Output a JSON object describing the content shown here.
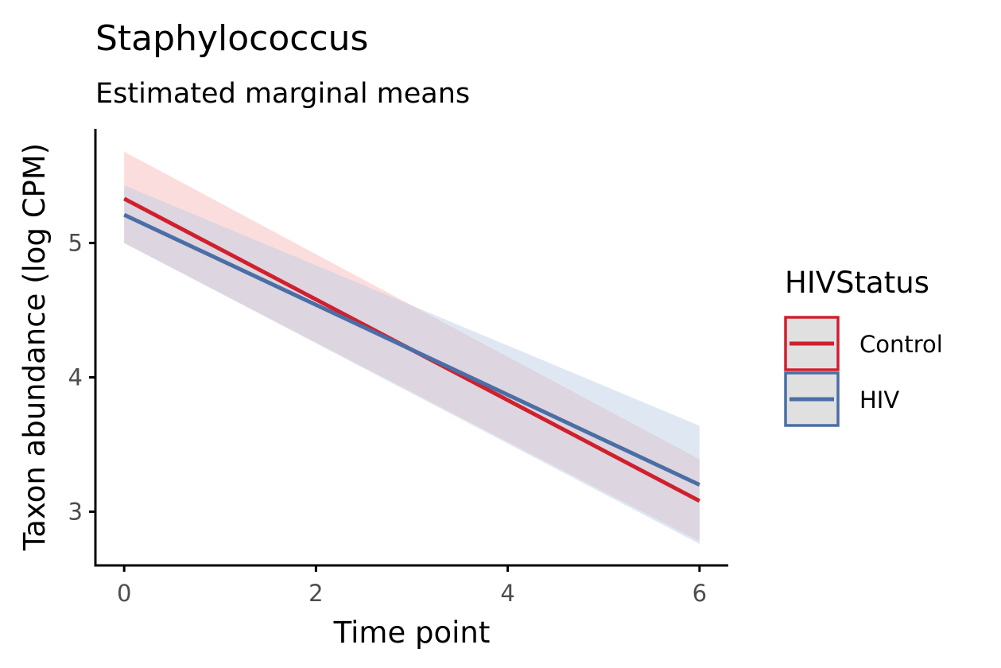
{
  "chart_data": {
    "type": "line",
    "title": "Staphylococcus",
    "subtitle": "Estimated marginal means",
    "xlabel": "Time point",
    "ylabel": "Taxon abundance (log CPM)",
    "xlim": [
      -0.3,
      6.3
    ],
    "ylim": [
      2.6,
      5.85
    ],
    "xticks": [
      0,
      2,
      4,
      6
    ],
    "yticks": [
      3,
      4,
      5
    ],
    "grid": false,
    "legend": {
      "title": "HIVStatus",
      "placement": "right"
    },
    "series": [
      {
        "name": "Control",
        "color": "#d0202e",
        "ribbon_color": "#f8b4b4",
        "x": [
          0,
          6
        ],
        "y": [
          5.33,
          3.08
        ],
        "lower": [
          5.0,
          2.78
        ],
        "upper": [
          5.68,
          3.39
        ]
      },
      {
        "name": "HIV",
        "color": "#4a6ea5",
        "ribbon_color": "#b8cde3",
        "x": [
          0,
          6
        ],
        "y": [
          5.21,
          3.2
        ],
        "lower": [
          5.0,
          2.76
        ],
        "upper": [
          5.43,
          3.64
        ]
      }
    ]
  }
}
